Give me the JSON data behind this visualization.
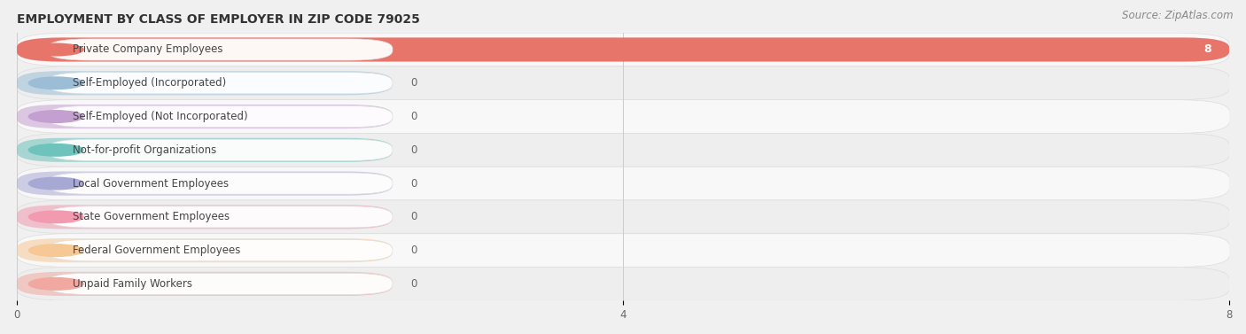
{
  "title": "EMPLOYMENT BY CLASS OF EMPLOYER IN ZIP CODE 79025",
  "source": "Source: ZipAtlas.com",
  "categories": [
    "Private Company Employees",
    "Self-Employed (Incorporated)",
    "Self-Employed (Not Incorporated)",
    "Not-for-profit Organizations",
    "Local Government Employees",
    "State Government Employees",
    "Federal Government Employees",
    "Unpaid Family Workers"
  ],
  "values": [
    8,
    0,
    0,
    0,
    0,
    0,
    0,
    0
  ],
  "bar_colors": [
    "#e8756a",
    "#9bbdd6",
    "#c4a0d0",
    "#6ec4bc",
    "#a8a8d4",
    "#f29ab0",
    "#f5c896",
    "#f0a8a0"
  ],
  "xlim": [
    0,
    8
  ],
  "xticks": [
    0,
    4,
    8
  ],
  "background_color": "#f0f0f0",
  "row_colors": [
    "#f8f8f8",
    "#eeeeee"
  ],
  "title_fontsize": 10,
  "source_fontsize": 8.5,
  "label_fontsize": 8.5,
  "value_fontsize": 8.5
}
